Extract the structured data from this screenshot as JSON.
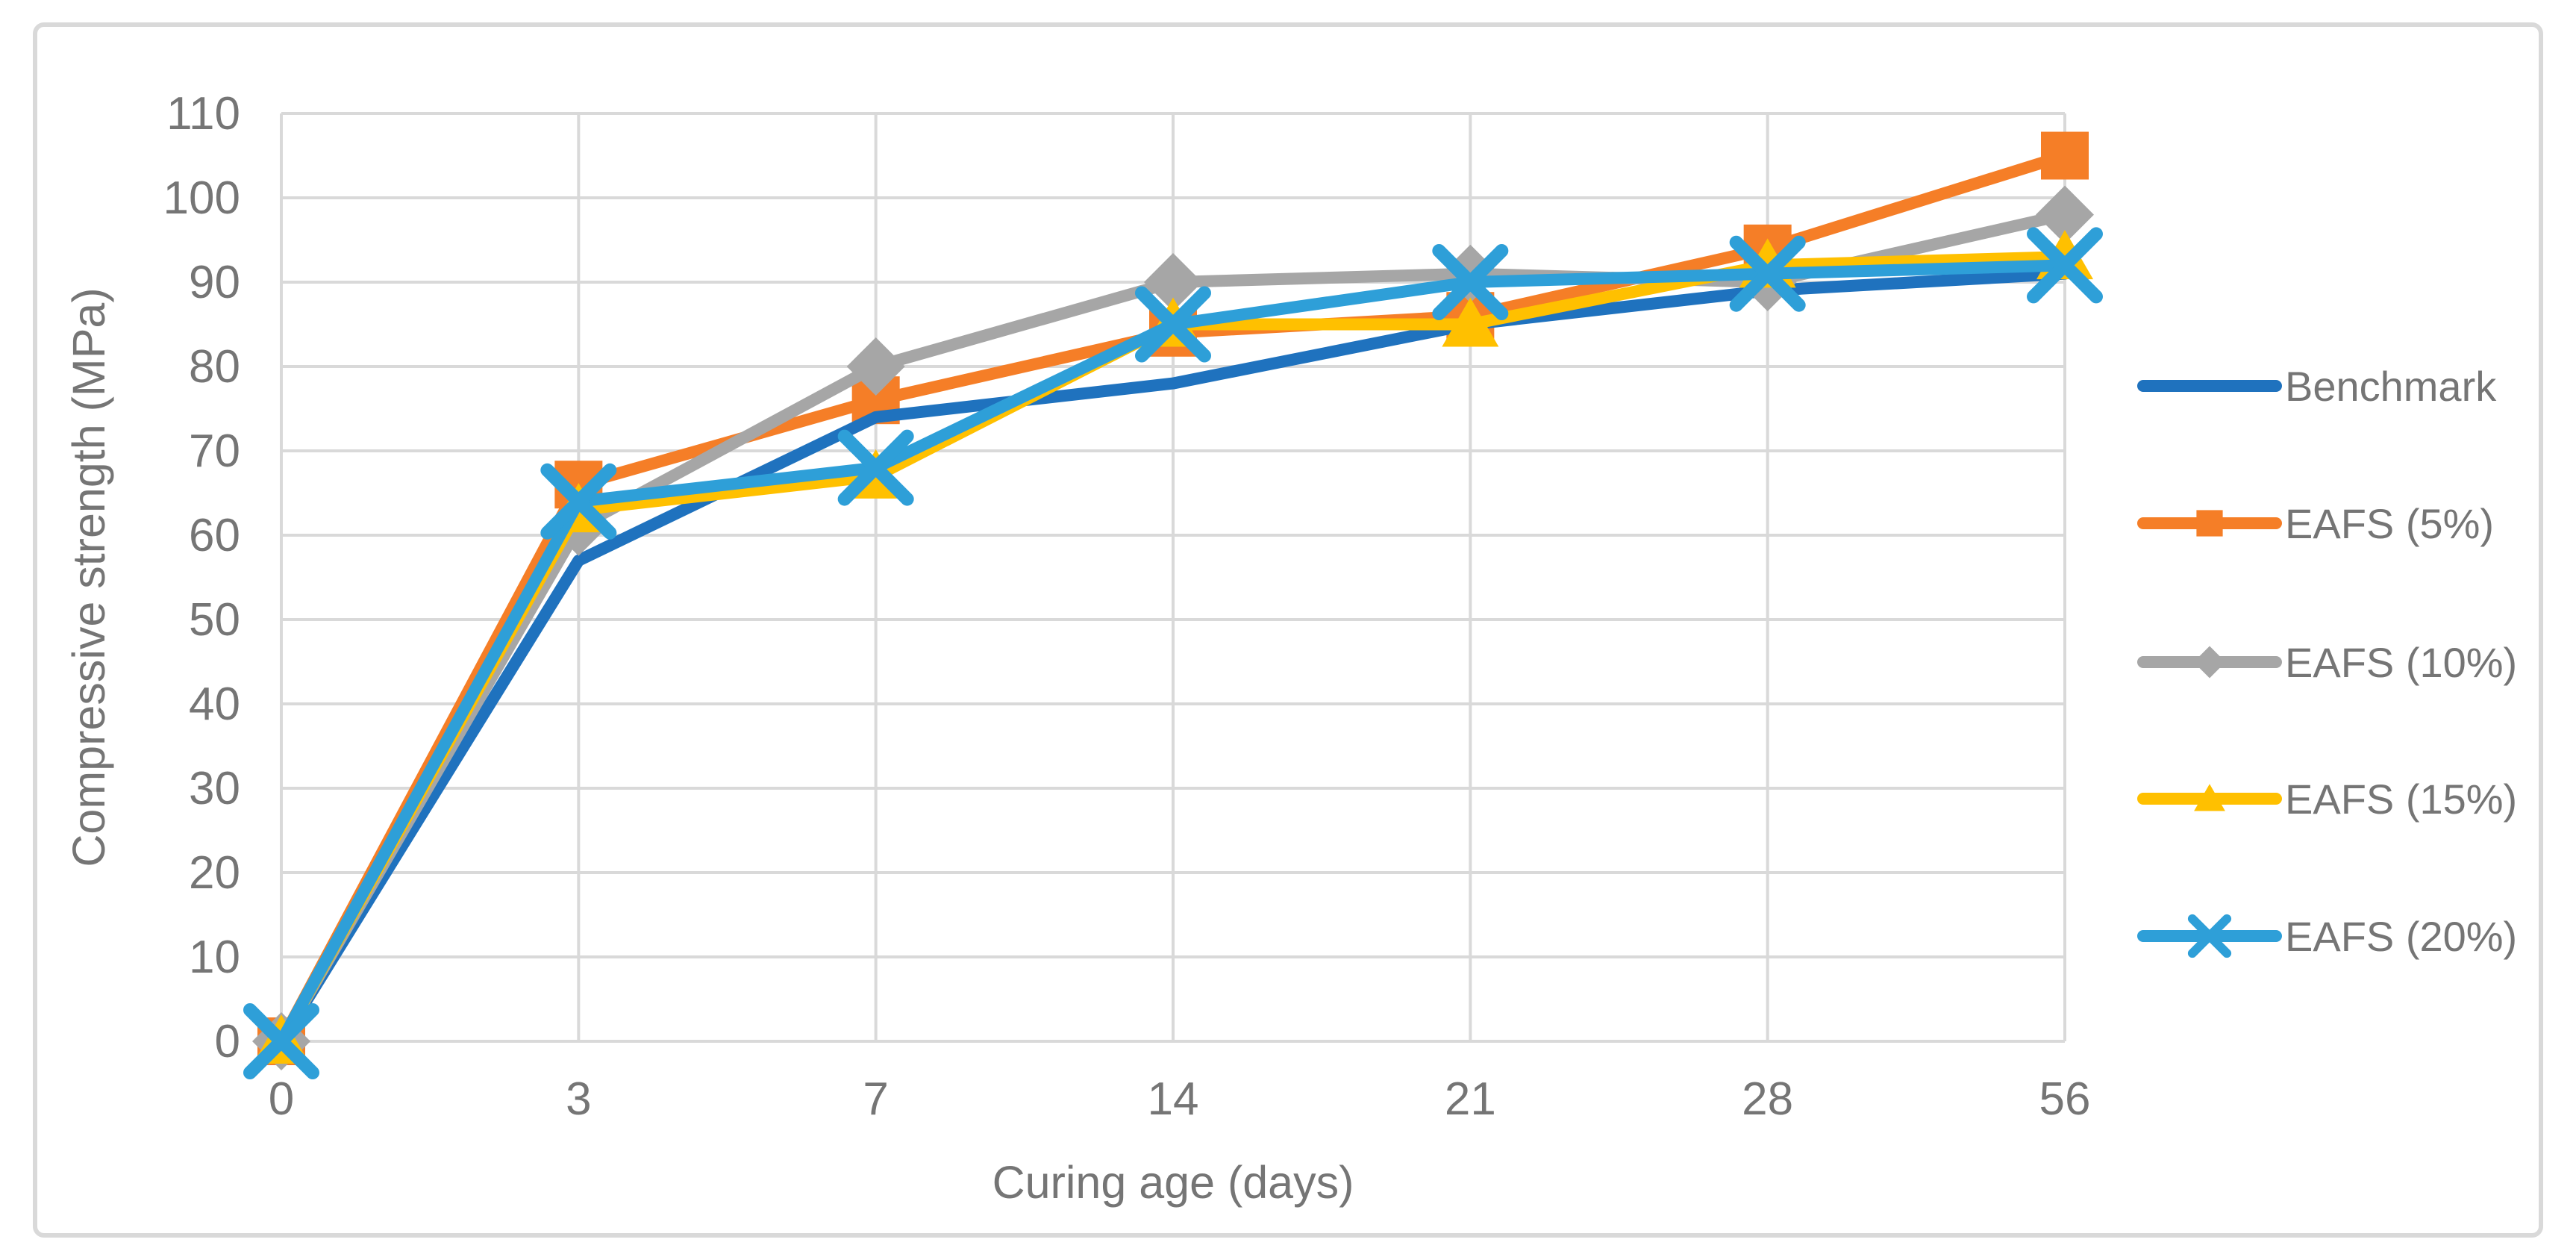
{
  "figure": {
    "background": "#FFFFFF",
    "border_color": "#D9D9D9",
    "grid_color": "#D9D9D9",
    "axis_color": "#D9D9D9",
    "text_color": "#757575"
  },
  "chart_data": {
    "type": "line",
    "title": "",
    "xlabel": "Curing age (days)",
    "ylabel": "Compressive strength (MPa)",
    "categories": [
      "0",
      "3",
      "7",
      "14",
      "21",
      "28",
      "56"
    ],
    "ylim": [
      0,
      110
    ],
    "ytick_step": 10,
    "yticks": [
      "0",
      "10",
      "20",
      "30",
      "40",
      "50",
      "60",
      "70",
      "80",
      "90",
      "100",
      "110"
    ],
    "grid": true,
    "legend_position": "right",
    "series": [
      {
        "name": "Benchmark",
        "color": "#1F72BE",
        "marker": "none",
        "values": [
          0,
          57,
          74,
          78,
          85,
          89,
          91
        ]
      },
      {
        "name": "EAFS (5%)",
        "color": "#F57E27",
        "marker": "square",
        "values": [
          0,
          66,
          76,
          84,
          86,
          94,
          105
        ]
      },
      {
        "name": "EAFS (10%)",
        "color": "#A6A6A6",
        "marker": "diamond",
        "values": [
          0,
          61,
          80,
          90,
          91,
          90,
          98
        ]
      },
      {
        "name": "EAFS (15%)",
        "color": "#FFC000",
        "marker": "triangle",
        "values": [
          0,
          63,
          67,
          85,
          85,
          92,
          93
        ]
      },
      {
        "name": "EAFS (20%)",
        "color": "#2E9FD8",
        "marker": "x",
        "values": [
          0,
          64,
          68,
          85,
          90,
          91,
          92
        ]
      }
    ],
    "draw_order": [
      1,
      0,
      2,
      3,
      4
    ]
  }
}
